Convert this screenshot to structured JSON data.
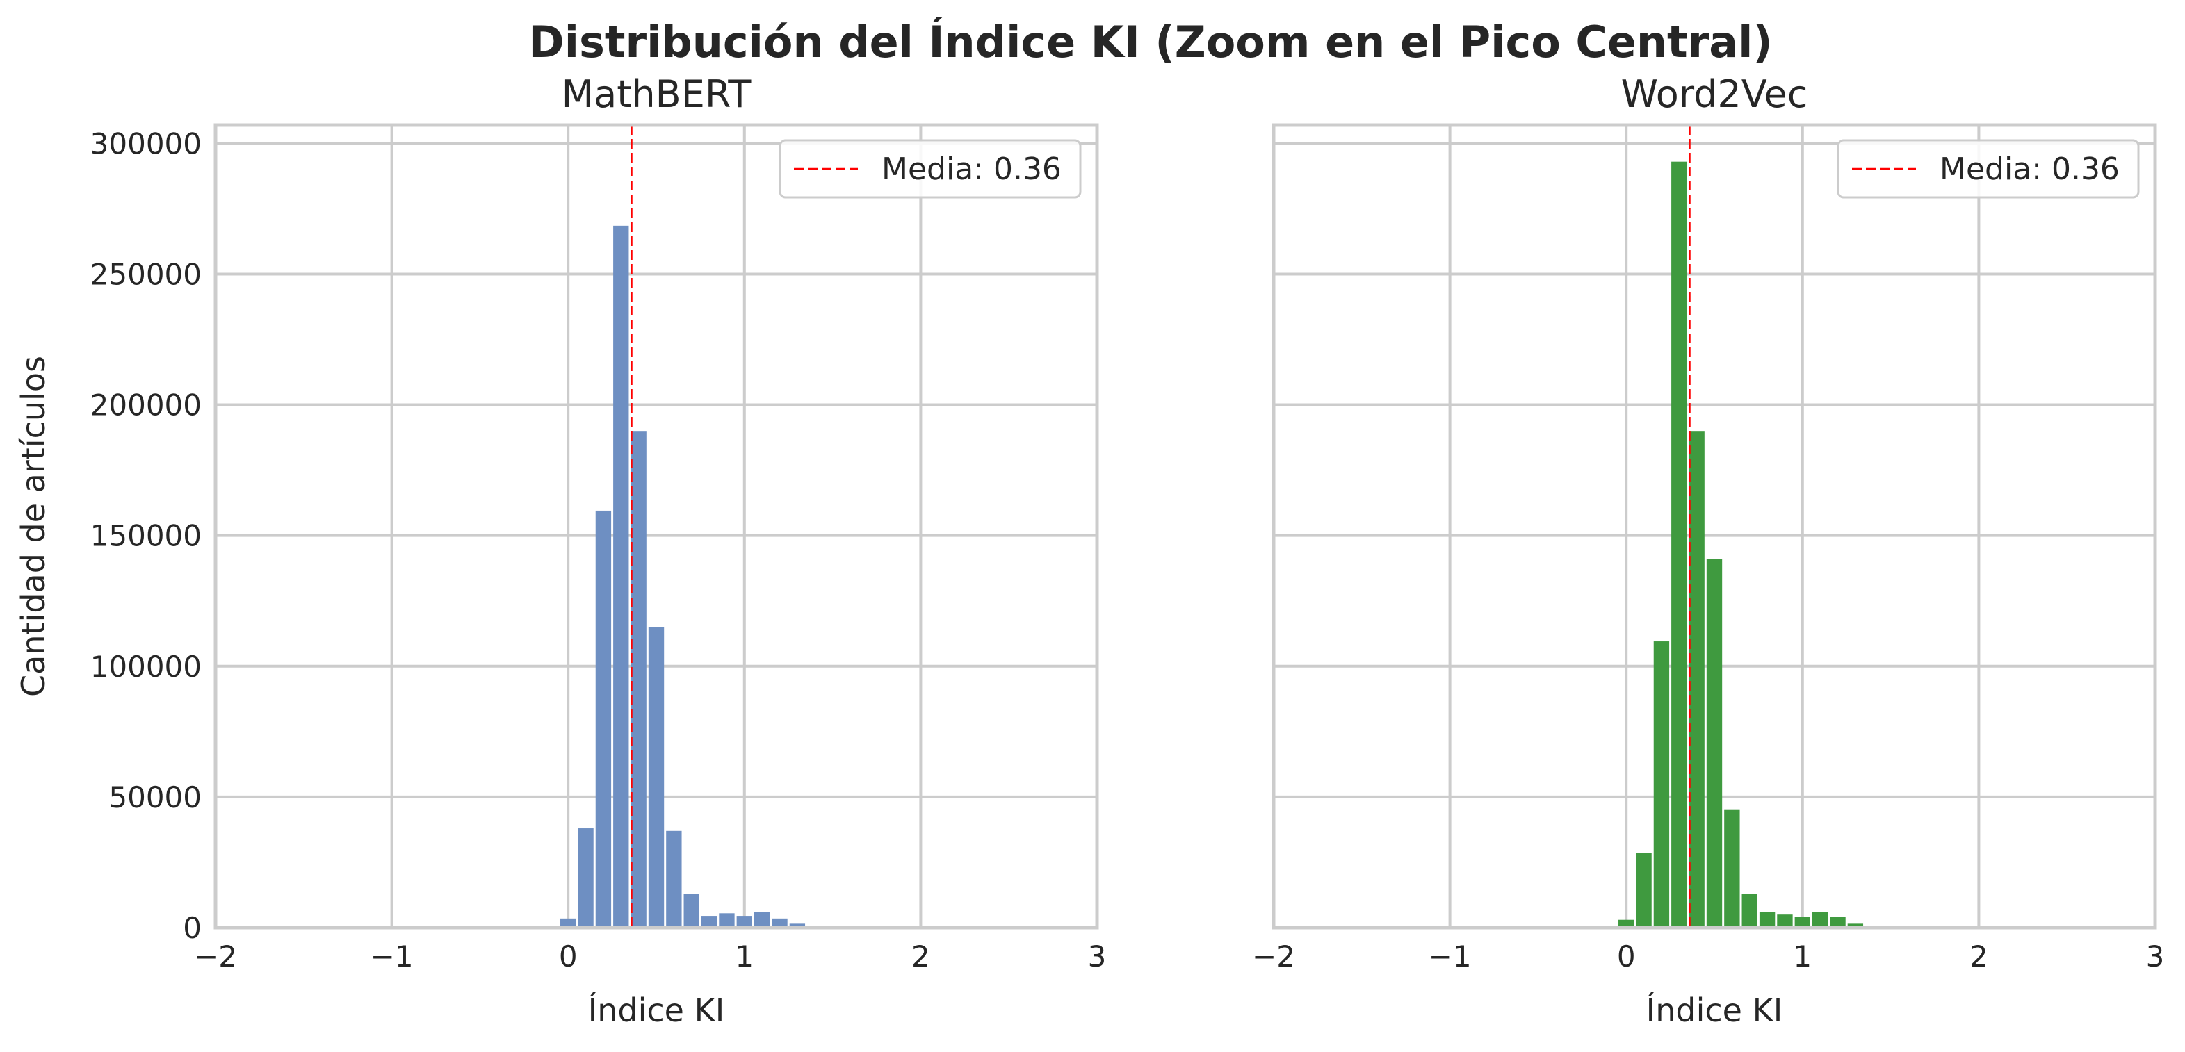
{
  "chart_data": {
    "title": "Distribución del Índice KI (Zoom en el Pico Central)",
    "panels": [
      {
        "type": "bar",
        "title": "MathBERT",
        "xlabel": "Índice KI",
        "ylabel": "Cantidad de artículos",
        "xlim": [
          -2,
          3
        ],
        "ylim": [
          0,
          307000
        ],
        "xticks": [
          -2,
          -1,
          0,
          1,
          2,
          3
        ],
        "xtick_labels": [
          "−2",
          "−1",
          "0",
          "1",
          "2",
          "3"
        ],
        "yticks": [
          0,
          50000,
          100000,
          150000,
          200000,
          250000,
          300000
        ],
        "ytick_labels": [
          "0",
          "50000",
          "100000",
          "150000",
          "200000",
          "250000",
          "300000"
        ],
        "grid": true,
        "color": "#6e8fc2",
        "bin_width": 0.1,
        "bin_left_edges": [
          -0.05,
          0.05,
          0.15,
          0.25,
          0.35,
          0.45,
          0.55,
          0.65,
          0.75,
          0.85,
          0.95,
          1.05,
          1.15,
          1.25
        ],
        "values": [
          3500,
          38000,
          159500,
          268500,
          190000,
          115000,
          37000,
          13000,
          4500,
          5500,
          4500,
          6000,
          3500,
          1500
        ],
        "mean": 0.36,
        "legend": {
          "label": "Media: 0.36",
          "position": "upper right"
        }
      },
      {
        "type": "bar",
        "title": "Word2Vec",
        "xlabel": "Índice KI",
        "ylabel": "",
        "xlim": [
          -2,
          3
        ],
        "ylim": [
          0,
          307000
        ],
        "xticks": [
          -2,
          -1,
          0,
          1,
          2,
          3
        ],
        "xtick_labels": [
          "−2",
          "−1",
          "0",
          "1",
          "2",
          "3"
        ],
        "grid": true,
        "color": "#3f9a3f",
        "bin_width": 0.1,
        "bin_left_edges": [
          -0.05,
          0.05,
          0.15,
          0.25,
          0.35,
          0.45,
          0.55,
          0.65,
          0.75,
          0.85,
          0.95,
          1.05,
          1.15,
          1.25
        ],
        "values": [
          3000,
          28500,
          109500,
          293000,
          190000,
          141000,
          45000,
          13000,
          6000,
          5000,
          4000,
          6000,
          4000,
          1500
        ],
        "mean": 0.36,
        "legend": {
          "label": "Media: 0.36",
          "position": "upper right"
        }
      }
    ]
  }
}
